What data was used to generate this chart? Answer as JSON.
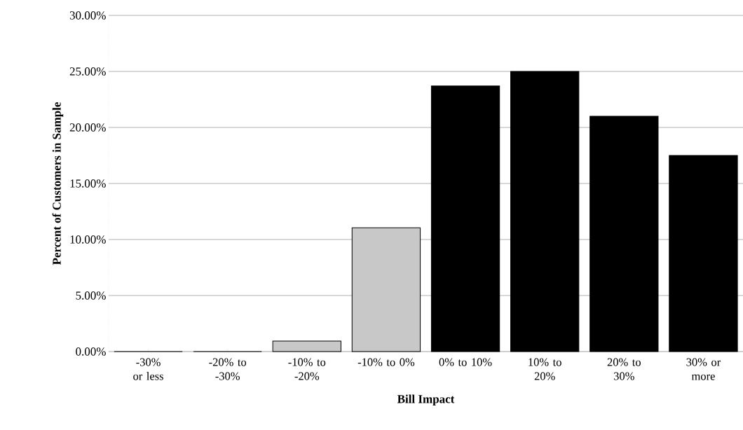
{
  "chart_data": {
    "type": "bar",
    "xlabel": "Bill Impact",
    "ylabel": "Percent of Customers in Sample",
    "categories": [
      "-30% or less",
      "-20% to -30%",
      "-10% to -20%",
      "-10% to 0%",
      "0% to 10%",
      "10% to 20%",
      "20% to 30%",
      "30% or more"
    ],
    "values": [
      0,
      0,
      0.94,
      11.05,
      23.7,
      25.0,
      21.0,
      17.5
    ],
    "colors": [
      "#c8c8c8",
      "#c8c8c8",
      "#c8c8c8",
      "#c8c8c8",
      "#000000",
      "#000000",
      "#000000",
      "#000000"
    ],
    "ylim": [
      0,
      30
    ],
    "yticks": [
      {
        "value": 0,
        "label": "0.00%"
      },
      {
        "value": 5,
        "label": "5.00%"
      },
      {
        "value": 10,
        "label": "10.00%"
      },
      {
        "value": 15,
        "label": "15.00%"
      },
      {
        "value": 20,
        "label": "20.00%"
      },
      {
        "value": 25,
        "label": "25.00%"
      },
      {
        "value": 30,
        "label": "30.00%"
      }
    ],
    "grid": "y"
  }
}
